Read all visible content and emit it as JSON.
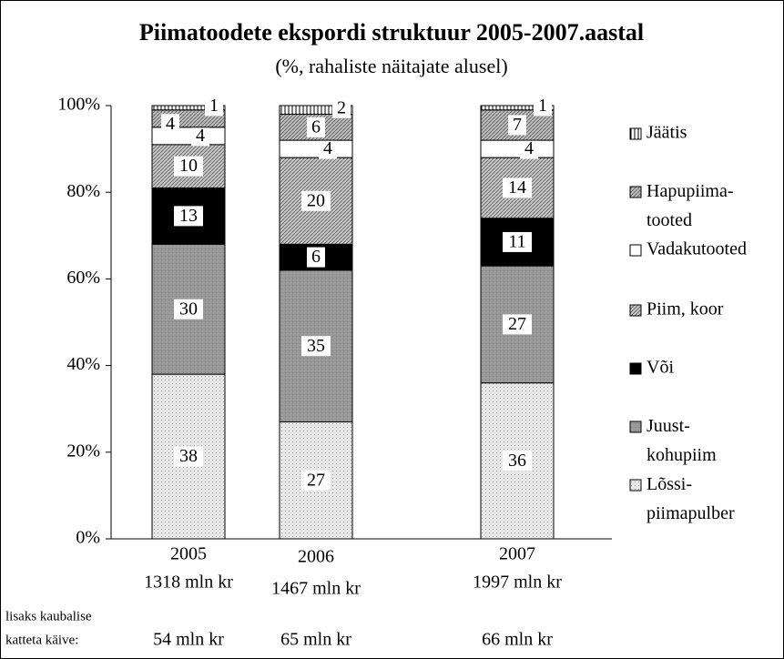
{
  "chart_data": {
    "type": "bar",
    "stacked": true,
    "title": "Piimatoodete ekspordi struktuur 2005-2007.aastal",
    "subtitle": "(%, rahaliste näitajate alusel)",
    "categories": [
      "2005",
      "2006",
      "2007"
    ],
    "category_totals": [
      "1318 mln kr",
      "1467 mln kr",
      "1997 mln kr"
    ],
    "note_lines": [
      "lisaks kaubalise",
      "katteta käive:"
    ],
    "extra_turnover": [
      "54 mln kr",
      "65 mln kr",
      "66 mln kr"
    ],
    "ylim": [
      0,
      100
    ],
    "yticks": [
      {
        "value": 0,
        "label": "0%"
      },
      {
        "value": 20,
        "label": "20%"
      },
      {
        "value": 40,
        "label": "40%"
      },
      {
        "value": 60,
        "label": "60%"
      },
      {
        "value": 80,
        "label": "80%"
      },
      {
        "value": 100,
        "label": "100%"
      }
    ],
    "series": [
      {
        "name": "Lõssi-\npiimapulber",
        "color": "#e6e6e6",
        "pattern": "dots",
        "values": [
          38,
          27,
          36
        ]
      },
      {
        "name": "Juust-\nkohupiim",
        "color": "#999999",
        "pattern": "dots",
        "values": [
          30,
          35,
          27
        ]
      },
      {
        "name": "Või",
        "color": "#000000",
        "pattern": "none",
        "values": [
          13,
          6,
          11
        ]
      },
      {
        "name": "Piim, koor",
        "color": "#c8c8c8",
        "pattern": "hatch",
        "values": [
          10,
          20,
          14
        ]
      },
      {
        "name": "Vadakutooted",
        "color": "#ffffff",
        "pattern": "none",
        "values": [
          4,
          4,
          4
        ]
      },
      {
        "name": "Hapupiima-\ntooted",
        "color": "#bdbdbd",
        "pattern": "hatch",
        "values": [
          4,
          6,
          7
        ]
      },
      {
        "name": "Jäätis",
        "color": "#ffffff",
        "pattern": "vstripes",
        "values": [
          1,
          2,
          1
        ]
      }
    ]
  }
}
